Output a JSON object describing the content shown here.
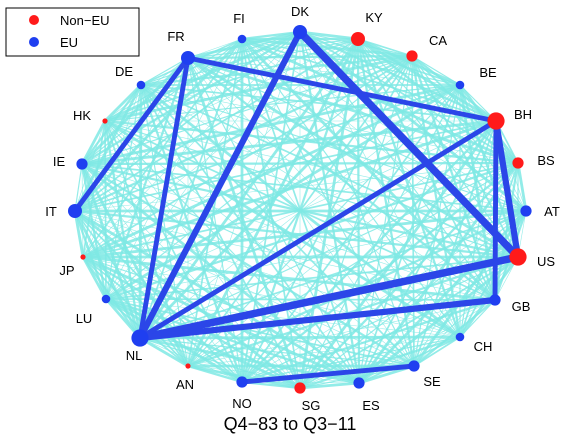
{
  "caption": "Q4−83 to Q3−11",
  "legend": [
    {
      "label": "Non−EU",
      "color": "#ff1a1a"
    },
    {
      "label": "EU",
      "color": "#1f3ff0"
    }
  ],
  "colors": {
    "eu": "#1f3ff0",
    "non_eu": "#ff1a1a",
    "background_edge": "#7fe9e4",
    "strong_edge": "#2b46e8"
  },
  "nodes": [
    {
      "id": "DK",
      "label": "DK",
      "group": "EU",
      "weight": 3
    },
    {
      "id": "KY",
      "label": "KY",
      "group": "Non-EU",
      "weight": 3
    },
    {
      "id": "CA",
      "label": "CA",
      "group": "Non-EU",
      "weight": 2
    },
    {
      "id": "BE",
      "label": "BE",
      "group": "EU",
      "weight": 1
    },
    {
      "id": "BH",
      "label": "BH",
      "group": "Non-EU",
      "weight": 4
    },
    {
      "id": "BS",
      "label": "BS",
      "group": "Non-EU",
      "weight": 2
    },
    {
      "id": "AT",
      "label": "AT",
      "group": "EU",
      "weight": 2
    },
    {
      "id": "US",
      "label": "US",
      "group": "Non-EU",
      "weight": 4
    },
    {
      "id": "GB",
      "label": "GB",
      "group": "EU",
      "weight": 2
    },
    {
      "id": "CH",
      "label": "CH",
      "group": "EU",
      "weight": 1
    },
    {
      "id": "SE",
      "label": "SE",
      "group": "EU",
      "weight": 2
    },
    {
      "id": "ES",
      "label": "ES",
      "group": "EU",
      "weight": 2
    },
    {
      "id": "SG",
      "label": "SG",
      "group": "Non-EU",
      "weight": 2
    },
    {
      "id": "NO",
      "label": "NO",
      "group": "EU",
      "weight": 2
    },
    {
      "id": "AN",
      "label": "AN",
      "group": "Non-EU",
      "weight": 0
    },
    {
      "id": "NL",
      "label": "NL",
      "group": "EU",
      "weight": 4
    },
    {
      "id": "LU",
      "label": "LU",
      "group": "EU",
      "weight": 1
    },
    {
      "id": "JP",
      "label": "JP",
      "group": "Non-EU",
      "weight": 0
    },
    {
      "id": "IT",
      "label": "IT",
      "group": "EU",
      "weight": 3
    },
    {
      "id": "IE",
      "label": "IE",
      "group": "EU",
      "weight": 2
    },
    {
      "id": "HK",
      "label": "HK",
      "group": "Non-EU",
      "weight": 0
    },
    {
      "id": "DE",
      "label": "DE",
      "group": "EU",
      "weight": 1
    },
    {
      "id": "FR",
      "label": "FR",
      "group": "EU",
      "weight": 3
    },
    {
      "id": "FI",
      "label": "FI",
      "group": "EU",
      "weight": 1
    }
  ],
  "strong_edges": [
    {
      "source": "DK",
      "target": "US",
      "weight": 5
    },
    {
      "source": "DK",
      "target": "NL",
      "weight": 4
    },
    {
      "source": "NL",
      "target": "US",
      "weight": 5
    },
    {
      "source": "NL",
      "target": "BH",
      "weight": 3
    },
    {
      "source": "NL",
      "target": "GB",
      "weight": 4
    },
    {
      "source": "NL",
      "target": "FR",
      "weight": 3
    },
    {
      "source": "FR",
      "target": "IT",
      "weight": 3
    },
    {
      "source": "FR",
      "target": "BH",
      "weight": 3
    },
    {
      "source": "BH",
      "target": "US",
      "weight": 4
    },
    {
      "source": "BH",
      "target": "GB",
      "weight": 3
    },
    {
      "source": "NO",
      "target": "SE",
      "weight": 3
    }
  ]
}
